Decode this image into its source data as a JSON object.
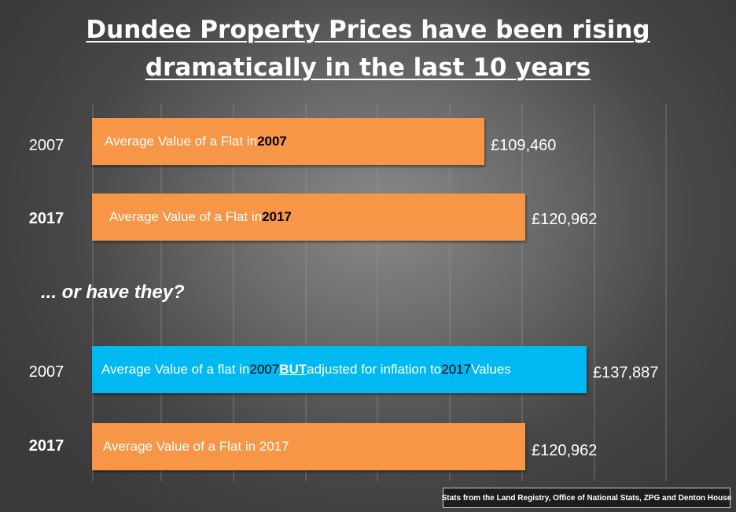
{
  "title": {
    "line1": "Dundee Property Prices have been rising",
    "line2": "dramatically in the last 10 years"
  },
  "question": "... or have they?",
  "source": "Stats from the Land Registry, Office of National Stats, ZPG and Denton House",
  "colors": {
    "orange": "#f79646",
    "blue": "#00b9f2"
  },
  "chart_data": [
    {
      "type": "bar",
      "orientation": "horizontal",
      "grid": true,
      "categories": [
        "2007",
        "2017"
      ],
      "values": [
        109460,
        120962
      ],
      "value_labels": [
        "£109,460",
        "£120,962"
      ],
      "bar_labels": [
        [
          "Average Value of a Flat in ",
          "2007"
        ],
        [
          "Average Value of a Flat in ",
          "2017"
        ]
      ],
      "category_bold": [
        false,
        true
      ]
    },
    {
      "type": "bar",
      "orientation": "horizontal",
      "grid": true,
      "categories": [
        "2007",
        "2017"
      ],
      "values": [
        137887,
        120962
      ],
      "value_labels": [
        "£137,887",
        "£120,962"
      ],
      "bar_labels": [
        [
          "Average Value of a flat in ",
          "2007",
          " ",
          "BUT",
          " adjusted for inflation to ",
          "2017",
          " Values"
        ],
        [
          "Average Value of a Flat in 2017"
        ]
      ],
      "category_bold": [
        false,
        true
      ]
    }
  ]
}
